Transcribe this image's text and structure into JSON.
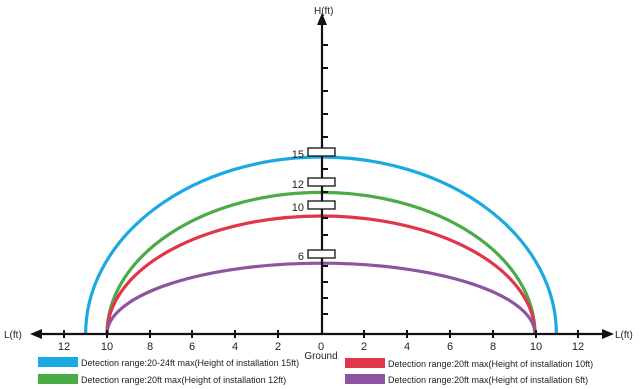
{
  "axes": {
    "x_label_left": "L(ft)",
    "x_label_right": "L(ft)",
    "y_label": "H(ft)",
    "ground_label": "Ground",
    "x_ticks_left": [
      "12",
      "10",
      "8",
      "6",
      "4",
      "2",
      "0"
    ],
    "x_ticks_right": [
      "2",
      "4",
      "6",
      "8",
      "10",
      "12"
    ]
  },
  "install_markers": [
    "15",
    "12",
    "10",
    "6"
  ],
  "arcs": [
    {
      "height": 15,
      "half_range": 11,
      "color": "#1ba9e1"
    },
    {
      "height": 12,
      "half_range": 10,
      "color": "#4bab46"
    },
    {
      "height": 10,
      "half_range": 10,
      "color": "#e2354a"
    },
    {
      "height": 6,
      "half_range": 10,
      "color": "#8c54a1"
    }
  ],
  "legend": [
    {
      "text": "Detection range:20-24ft max(Height of installation 15ft)",
      "color": "#1ba9e1"
    },
    {
      "text": "Detection range:20ft max(Height of installation 10ft)",
      "color": "#e2354a"
    },
    {
      "text": "Detection range:20ft max(Height of installation 12ft)",
      "color": "#4bab46"
    },
    {
      "text": "Detection range:20ft max(Height of installation 6ft)",
      "color": "#8c54a1"
    }
  ]
}
